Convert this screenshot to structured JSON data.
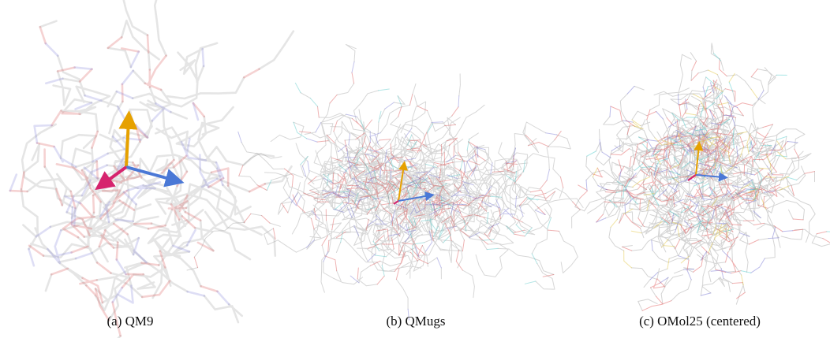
{
  "figures": [
    {
      "caption": "(a) QM9"
    },
    {
      "caption": "(b) QMugs"
    },
    {
      "caption": "(c) OMol25 (centered)"
    }
  ]
}
